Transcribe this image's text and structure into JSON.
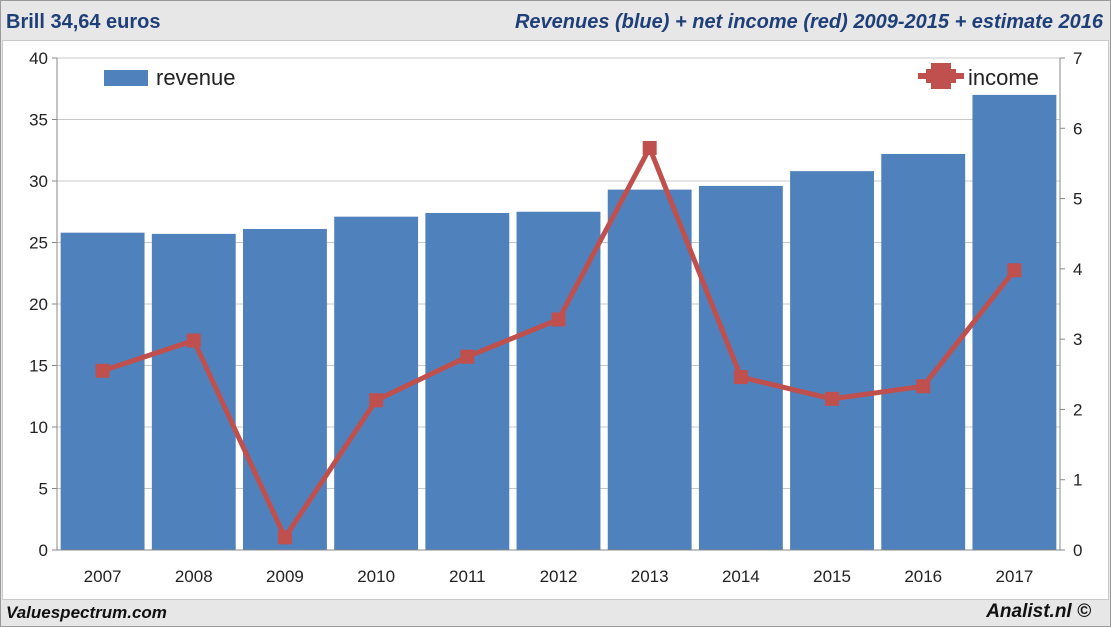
{
  "header": {
    "left": "Brill 34,64 euros",
    "right": "Revenues (blue) + net income (red) 2009-2015 + estimate 2016"
  },
  "footer": {
    "left": "Valuespectrum.com",
    "right": "Analist.nl ©"
  },
  "chart_data": {
    "type": "bar",
    "categories": [
      "2007",
      "2008",
      "2009",
      "2010",
      "2011",
      "2012",
      "2013",
      "2014",
      "2015",
      "2016",
      "2017"
    ],
    "series": [
      {
        "name": "revenue",
        "type": "bar",
        "axis": "left",
        "color": "#4f81bd",
        "values": [
          25.8,
          25.7,
          26.1,
          27.1,
          27.4,
          27.5,
          29.3,
          29.6,
          30.8,
          32.2,
          37.0
        ]
      },
      {
        "name": "income",
        "type": "line",
        "axis": "right",
        "color": "#c0504d",
        "values": [
          2.55,
          2.98,
          0.18,
          2.13,
          2.75,
          3.28,
          5.72,
          2.46,
          2.15,
          2.33,
          3.98
        ]
      }
    ],
    "ylim_left": [
      0,
      40
    ],
    "yticks_left": [
      0,
      5,
      10,
      15,
      20,
      25,
      30,
      35,
      40
    ],
    "ylim_right": [
      0,
      7
    ],
    "yticks_right": [
      0,
      1,
      2,
      3,
      4,
      5,
      6,
      7
    ],
    "grid": true,
    "legend": [
      "top-left",
      "top-right"
    ]
  }
}
